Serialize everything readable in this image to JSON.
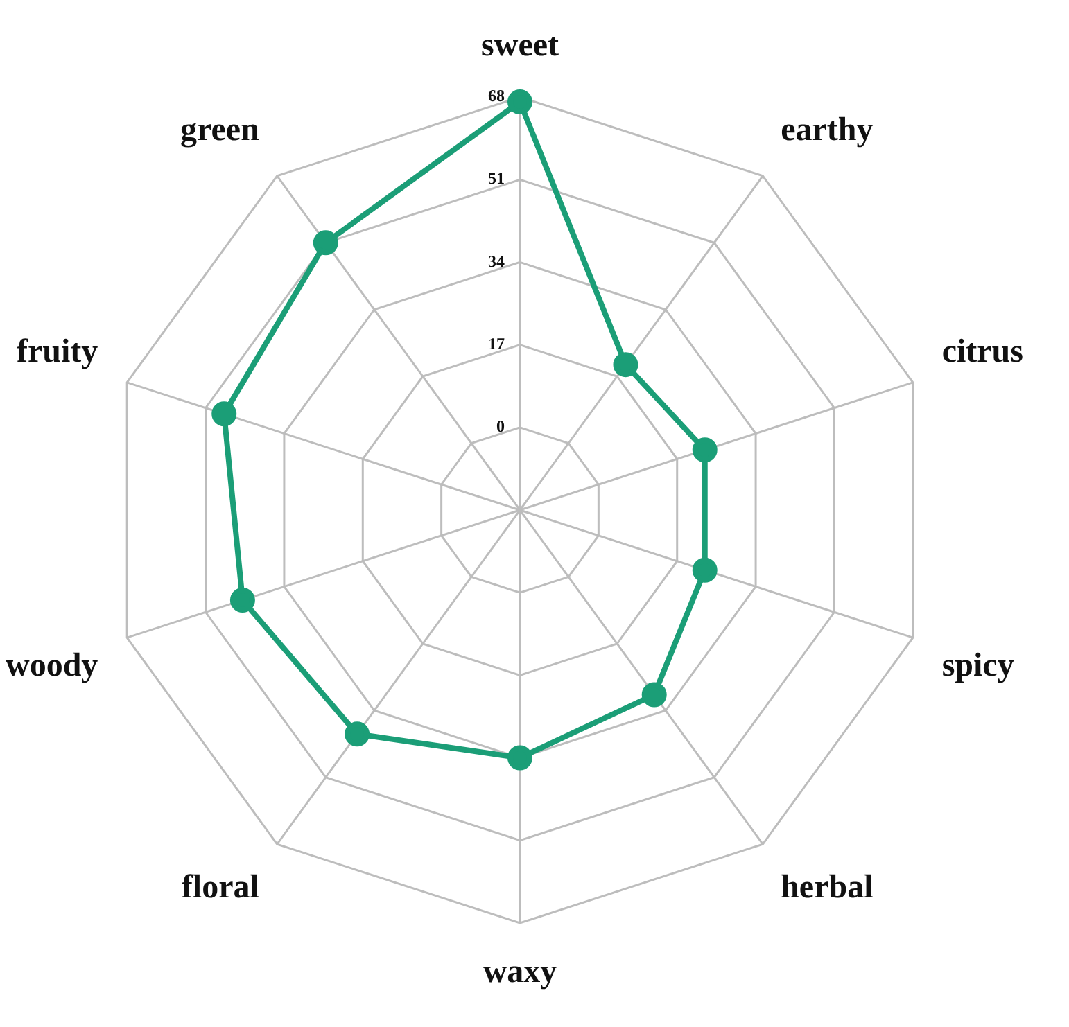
{
  "chart_data": {
    "type": "radar",
    "categories": [
      "sweet",
      "earthy",
      "citrus",
      "spicy",
      "herbal",
      "waxy",
      "floral",
      "woody",
      "fruity",
      "green"
    ],
    "series": [
      {
        "color": "#1b9e77",
        "values": [
          67,
          20,
          23,
          23,
          30,
          34,
          40,
          43,
          47,
          51
        ]
      }
    ],
    "ylim": [
      -17,
      68
    ],
    "yticks": [
      0,
      17,
      34,
      51,
      68
    ],
    "grid": true,
    "legend": false,
    "marker": "circle",
    "line_style": "solid"
  }
}
